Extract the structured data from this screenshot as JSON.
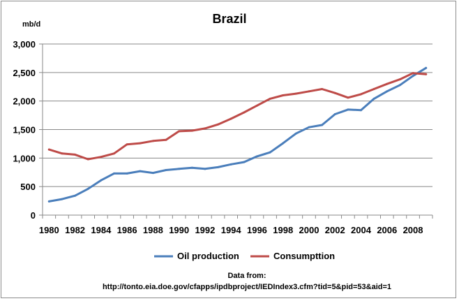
{
  "chart_data": {
    "type": "line",
    "title": "Brazil",
    "ylabel": "mb/d",
    "xlabel": "",
    "ylim": [
      0,
      3000
    ],
    "yticks": [
      0,
      500,
      1000,
      1500,
      2000,
      2500,
      3000
    ],
    "ytick_labels": [
      "0",
      "500",
      "1,000",
      "1,500",
      "2,000",
      "2,500",
      "3,000"
    ],
    "xlim": [
      1980,
      2009
    ],
    "xticks": [
      1980,
      1982,
      1984,
      1986,
      1988,
      1990,
      1992,
      1994,
      1996,
      1998,
      2000,
      2002,
      2004,
      2006,
      2008
    ],
    "xtick_labels": [
      "1980",
      "1982",
      "1984",
      "1986",
      "1988",
      "1990",
      "1992",
      "1994",
      "1996",
      "1998",
      "2000",
      "2002",
      "2004",
      "2006",
      "2008"
    ],
    "grid": "horizontal",
    "legend_position": "bottom",
    "x": [
      1980,
      1981,
      1982,
      1983,
      1984,
      1985,
      1986,
      1987,
      1988,
      1989,
      1990,
      1991,
      1992,
      1993,
      1994,
      1995,
      1996,
      1997,
      1998,
      1999,
      2000,
      2001,
      2002,
      2003,
      2004,
      2005,
      2006,
      2007,
      2008,
      2009
    ],
    "series": [
      {
        "name": "Oil production",
        "color": "#4a7ebb",
        "values": [
          240,
          280,
          340,
          460,
          610,
          730,
          730,
          770,
          740,
          790,
          810,
          830,
          810,
          840,
          890,
          930,
          1030,
          1100,
          1260,
          1430,
          1540,
          1580,
          1770,
          1850,
          1840,
          2040,
          2170,
          2280,
          2440,
          2580
        ]
      },
      {
        "name": "Consumpttion",
        "color": "#be4b48",
        "values": [
          1150,
          1080,
          1060,
          980,
          1020,
          1080,
          1240,
          1260,
          1300,
          1320,
          1470,
          1480,
          1520,
          1590,
          1690,
          1800,
          1920,
          2040,
          2100,
          2130,
          2170,
          2210,
          2140,
          2060,
          2120,
          2210,
          2300,
          2380,
          2490,
          2470
        ]
      }
    ],
    "source_title": "Data from:",
    "source_url": "http://tonto.eia.doe.gov/cfapps/ipdbproject/IEDIndex3.cfm?tid=5&pid=53&aid=1"
  }
}
